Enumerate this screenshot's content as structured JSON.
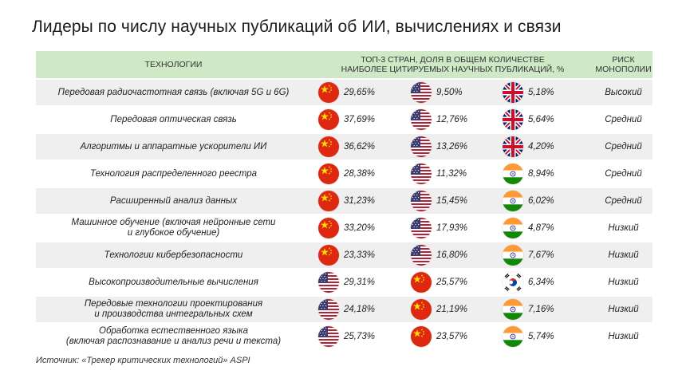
{
  "title": "Лидеры по числу научных публикаций об ИИ, вычислениях и связи",
  "header": {
    "tech": "Технологии",
    "share_line1": "Топ-3 стран, доля в общем количестве",
    "share_line2": "наиболее цитируемых научных публикаций, %",
    "risk_line1": "Риск",
    "risk_line2": "монополии"
  },
  "rows": [
    {
      "tech_line1": "Передовая радиочастотная связь (включая 5G и 6G)",
      "tech_line2": "",
      "c1": {
        "flag": "china-flag-icon",
        "value": "29,65%"
      },
      "c2": {
        "flag": "usa-flag-icon",
        "value": "9,50%"
      },
      "c3": {
        "flag": "uk-flag-icon",
        "value": "5,18%"
      },
      "risk": "Высокий"
    },
    {
      "tech_line1": "Передовая оптическая связь",
      "tech_line2": "",
      "c1": {
        "flag": "china-flag-icon",
        "value": "37,69%"
      },
      "c2": {
        "flag": "usa-flag-icon",
        "value": "12,76%"
      },
      "c3": {
        "flag": "uk-flag-icon",
        "value": "5,64%"
      },
      "risk": "Средний"
    },
    {
      "tech_line1": "Алгоритмы и аппаратные ускорители ИИ",
      "tech_line2": "",
      "c1": {
        "flag": "china-flag-icon",
        "value": "36,62%"
      },
      "c2": {
        "flag": "usa-flag-icon",
        "value": "13,26%"
      },
      "c3": {
        "flag": "uk-flag-icon",
        "value": "4,20%"
      },
      "risk": "Средний"
    },
    {
      "tech_line1": "Технология распределенного реестра",
      "tech_line2": "",
      "c1": {
        "flag": "china-flag-icon",
        "value": "28,38%"
      },
      "c2": {
        "flag": "usa-flag-icon",
        "value": "11,32%"
      },
      "c3": {
        "flag": "india-flag-icon",
        "value": "8,94%"
      },
      "risk": "Средний"
    },
    {
      "tech_line1": "Расширенный анализ данных",
      "tech_line2": "",
      "c1": {
        "flag": "china-flag-icon",
        "value": "31,23%"
      },
      "c2": {
        "flag": "usa-flag-icon",
        "value": "15,45%"
      },
      "c3": {
        "flag": "india-flag-icon",
        "value": "6,02%"
      },
      "risk": "Средний"
    },
    {
      "tech_line1": "Машинное обучение (включая нейронные сети",
      "tech_line2": "и глубокое обучение)",
      "c1": {
        "flag": "china-flag-icon",
        "value": "33,20%"
      },
      "c2": {
        "flag": "usa-flag-icon",
        "value": "17,93%"
      },
      "c3": {
        "flag": "india-flag-icon",
        "value": "4,87%"
      },
      "risk": "Низкий"
    },
    {
      "tech_line1": "Технологии кибербезопасности",
      "tech_line2": "",
      "c1": {
        "flag": "china-flag-icon",
        "value": "23,33%"
      },
      "c2": {
        "flag": "usa-flag-icon",
        "value": "16,80%"
      },
      "c3": {
        "flag": "india-flag-icon",
        "value": "7,67%"
      },
      "risk": "Низкий"
    },
    {
      "tech_line1": "Высокопроизводительные вычисления",
      "tech_line2": "",
      "c1": {
        "flag": "usa-flag-icon",
        "value": "29,31%"
      },
      "c2": {
        "flag": "china-flag-icon",
        "value": "25,57%"
      },
      "c3": {
        "flag": "korea-flag-icon",
        "value": "6,34%"
      },
      "risk": "Низкий"
    },
    {
      "tech_line1": "Передовые технологии проектирования",
      "tech_line2": "и производства интегральных схем",
      "c1": {
        "flag": "usa-flag-icon",
        "value": "24,18%"
      },
      "c2": {
        "flag": "china-flag-icon",
        "value": "21,19%"
      },
      "c3": {
        "flag": "india-flag-icon",
        "value": "7,16%"
      },
      "risk": "Низкий"
    },
    {
      "tech_line1": "Обработка естественного языка",
      "tech_line2": "(включая распознавание и анализ речи и текста)",
      "c1": {
        "flag": "usa-flag-icon",
        "value": "25,73%"
      },
      "c2": {
        "flag": "china-flag-icon",
        "value": "23,57%"
      },
      "c3": {
        "flag": "india-flag-icon",
        "value": "5,74%"
      },
      "risk": "Низкий"
    }
  ],
  "source": "Источник: «Трекер критических технологий» ASPI"
}
